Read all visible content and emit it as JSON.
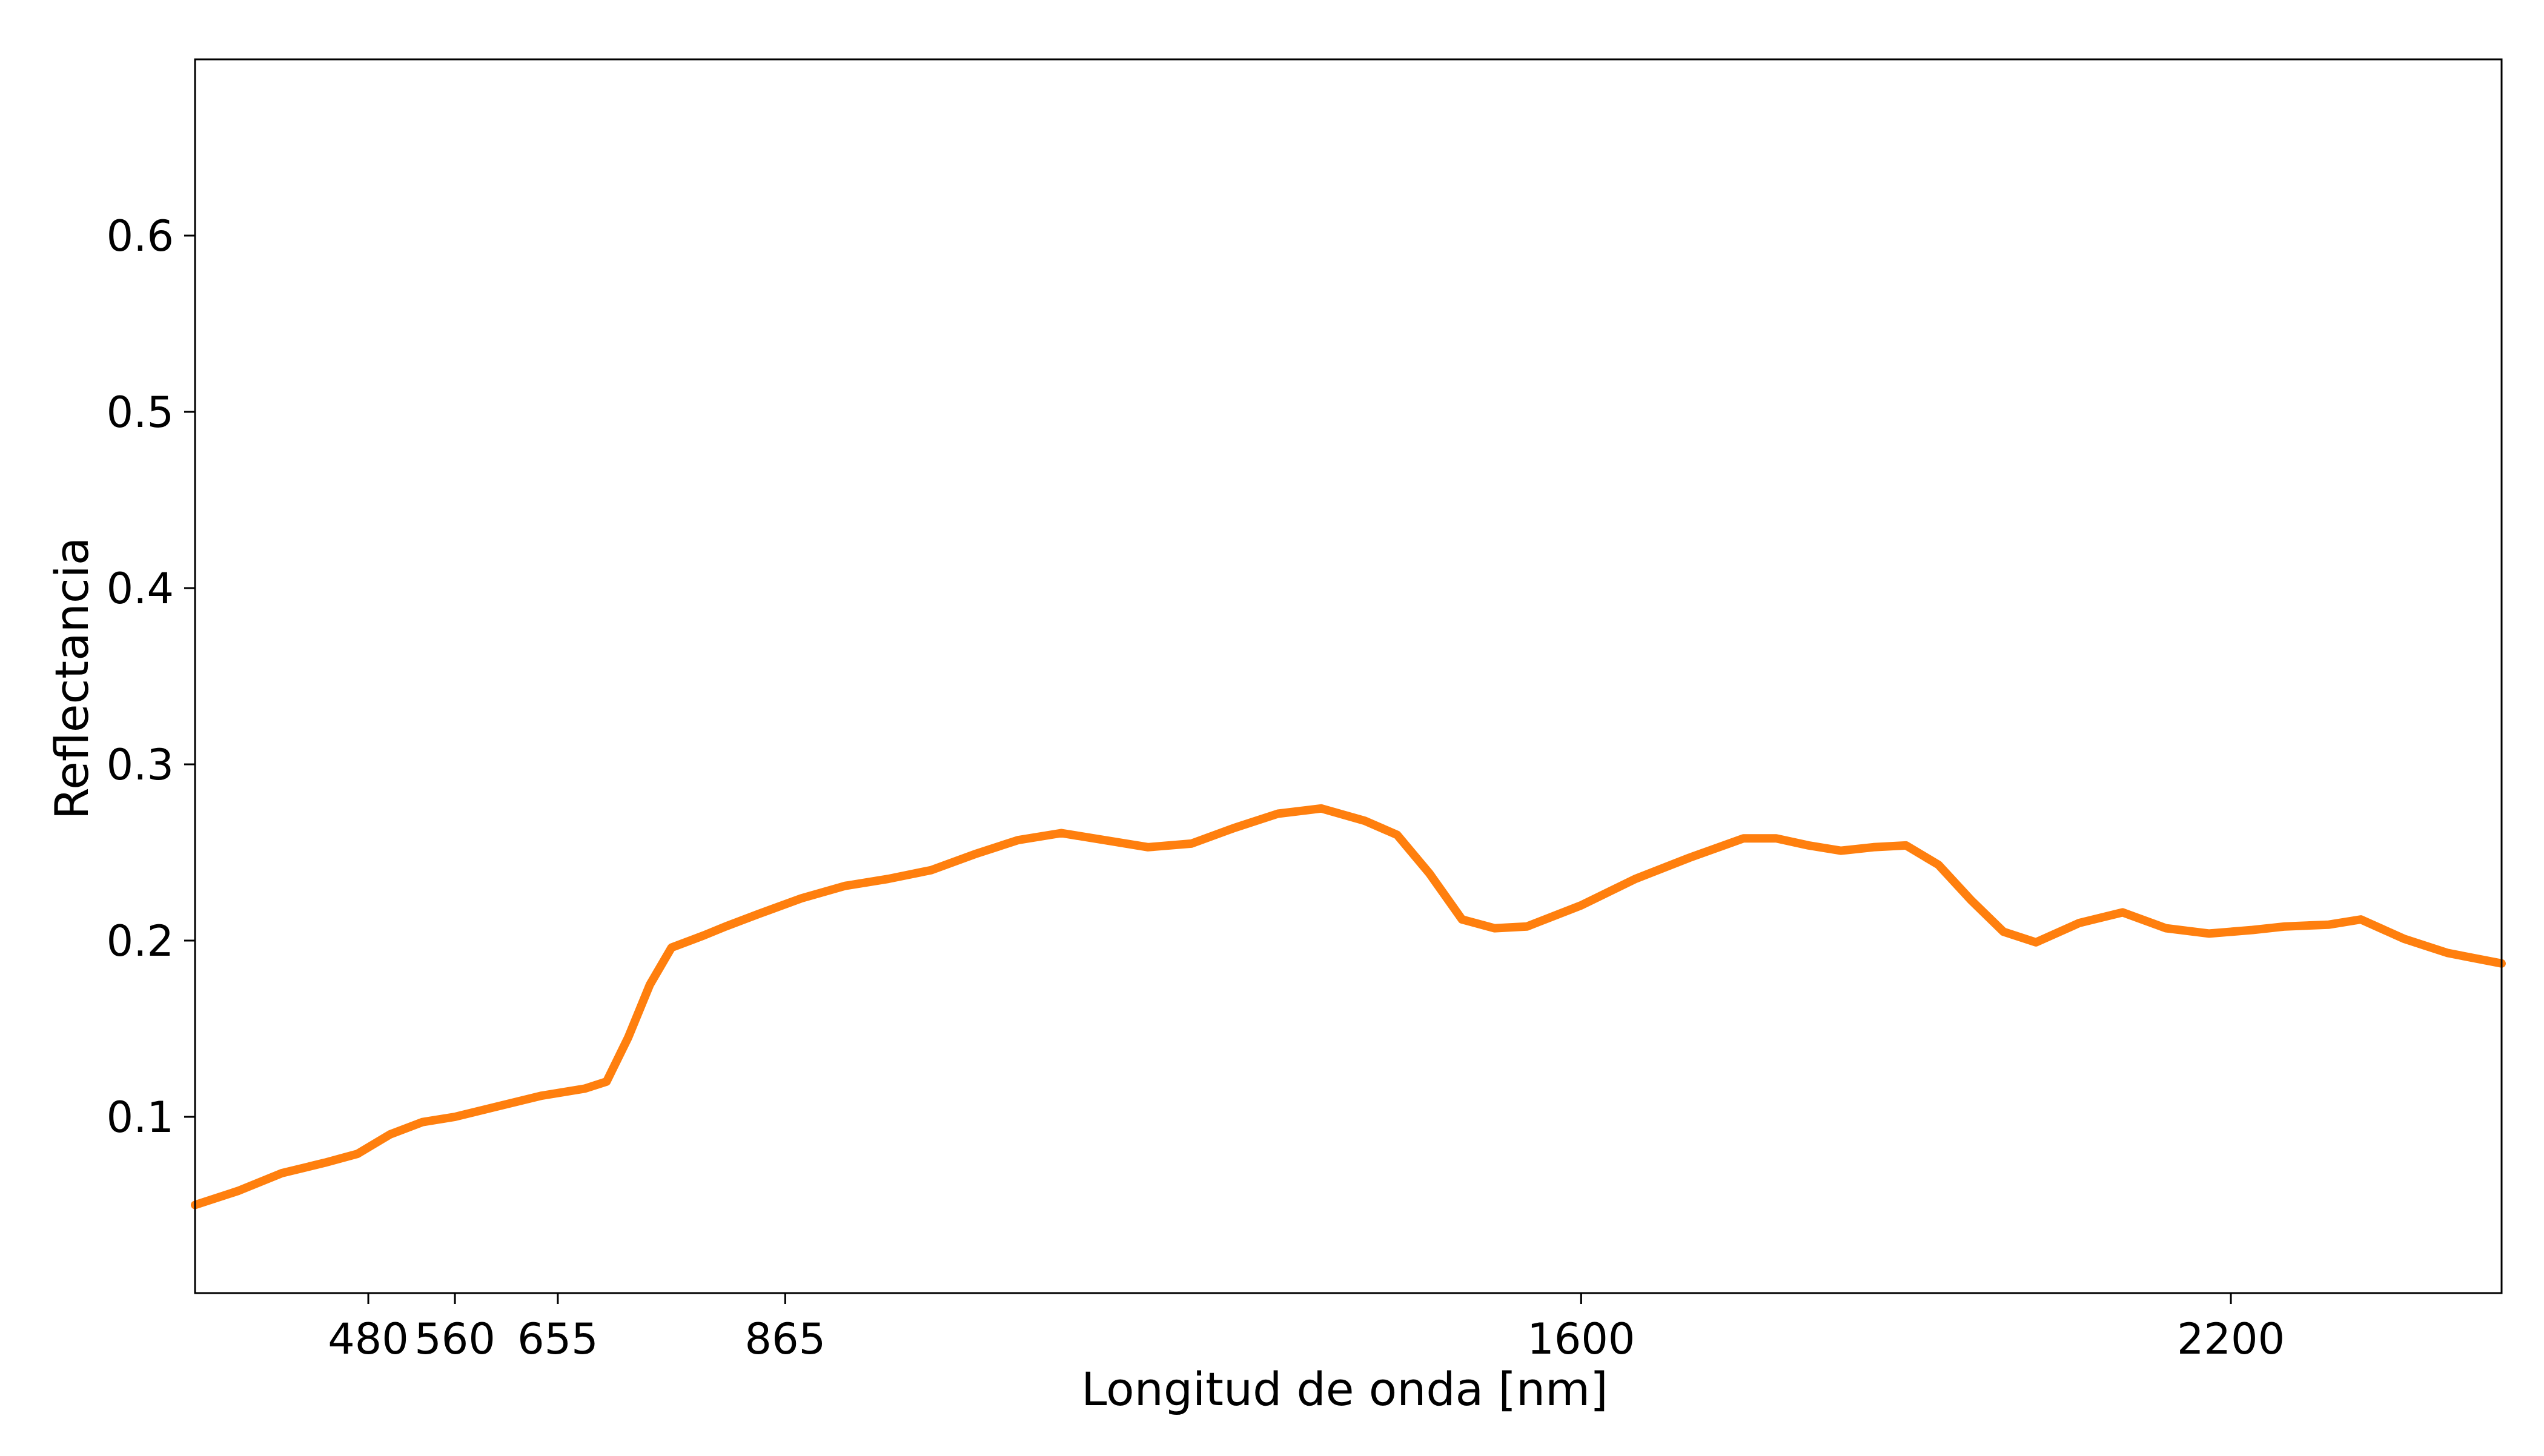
{
  "chart_data": {
    "type": "line",
    "title": "",
    "xlabel": "Longitud de onda [nm]",
    "ylabel": "Reflectancia",
    "xlim": [
      320,
      2450
    ],
    "ylim": [
      0.0,
      0.7
    ],
    "x_ticks": [
      {
        "value": 480,
        "label": "480"
      },
      {
        "value": 560,
        "label": "560"
      },
      {
        "value": 655,
        "label": "655"
      },
      {
        "value": 865,
        "label": "865"
      },
      {
        "value": 1600,
        "label": "1600"
      },
      {
        "value": 2200,
        "label": "2200"
      }
    ],
    "y_ticks": [
      {
        "value": 0.1,
        "label": "0.1"
      },
      {
        "value": 0.2,
        "label": "0.2"
      },
      {
        "value": 0.3,
        "label": "0.3"
      },
      {
        "value": 0.4,
        "label": "0.4"
      },
      {
        "value": 0.5,
        "label": "0.5"
      },
      {
        "value": 0.6,
        "label": "0.6"
      }
    ],
    "grid": false,
    "legend": "none",
    "series": [
      {
        "color": "#ff7f0e",
        "x": [
          320,
          360,
          400,
          440,
          470,
          500,
          530,
          560,
          600,
          640,
          680,
          700,
          720,
          740,
          760,
          790,
          810,
          840,
          880,
          920,
          960,
          1000,
          1040,
          1080,
          1120,
          1160,
          1200,
          1240,
          1280,
          1320,
          1360,
          1400,
          1430,
          1460,
          1490,
          1520,
          1550,
          1600,
          1650,
          1700,
          1750,
          1780,
          1810,
          1840,
          1870,
          1900,
          1930,
          1960,
          1990,
          2020,
          2060,
          2100,
          2140,
          2180,
          2220,
          2250,
          2290,
          2320,
          2360,
          2400,
          2450
        ],
        "y": [
          0.05,
          0.058,
          0.068,
          0.074,
          0.079,
          0.09,
          0.097,
          0.1,
          0.106,
          0.112,
          0.116,
          0.12,
          0.145,
          0.175,
          0.196,
          0.203,
          0.208,
          0.215,
          0.224,
          0.231,
          0.235,
          0.24,
          0.249,
          0.257,
          0.261,
          0.257,
          0.253,
          0.255,
          0.264,
          0.272,
          0.275,
          0.268,
          0.26,
          0.238,
          0.212,
          0.207,
          0.208,
          0.22,
          0.235,
          0.247,
          0.258,
          0.258,
          0.254,
          0.251,
          0.253,
          0.254,
          0.243,
          0.223,
          0.205,
          0.199,
          0.21,
          0.216,
          0.207,
          0.204,
          0.206,
          0.208,
          0.209,
          0.212,
          0.201,
          0.193,
          0.187
        ]
      }
    ]
  }
}
